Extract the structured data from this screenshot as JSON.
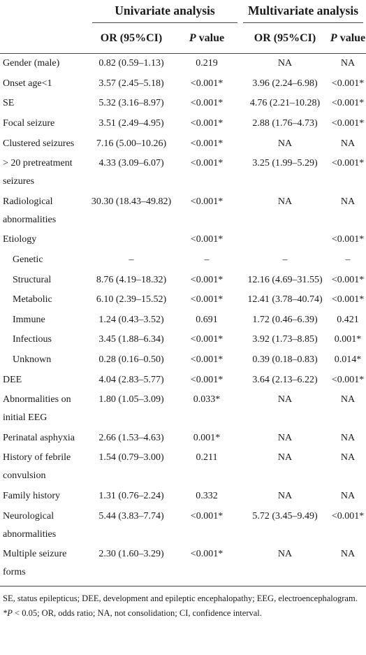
{
  "table": {
    "group_headers": [
      "Univariate analysis",
      "Multivariate analysis"
    ],
    "column_headers": [
      {
        "text": "OR (95%CI)"
      },
      {
        "italic": "P",
        "text": " value"
      },
      {
        "text": "OR (95%CI)"
      },
      {
        "italic": "P",
        "text": " value"
      }
    ],
    "rows": [
      {
        "label": "Gender (male)",
        "cells": [
          "0.82 (0.59–1.13)",
          "0.219",
          "NA",
          "NA"
        ]
      },
      {
        "label": "Onset age<1",
        "cells": [
          "3.57 (2.45–5.18)",
          "<0.001*",
          "3.96 (2.24–6.98)",
          "<0.001*"
        ]
      },
      {
        "label": "SE",
        "cells": [
          "5.32 (3.16–8.97)",
          "<0.001*",
          "4.76 (2.21–10.28)",
          "<0.001*"
        ]
      },
      {
        "label": "Focal seizure",
        "cells": [
          "3.51 (2.49–4.95)",
          "<0.001*",
          "2.88 (1.76–4.73)",
          "<0.001*"
        ]
      },
      {
        "label": "Clustered seizures",
        "cells": [
          "7.16 (5.00–10.26)",
          "<0.001*",
          "NA",
          "NA"
        ]
      },
      {
        "label": "> 20 pretreatment seizures",
        "cells": [
          "4.33 (3.09–6.07)",
          "<0.001*",
          "3.25 (1.99–5.29)",
          "<0.001*"
        ]
      },
      {
        "label": "Radiological abnormalities",
        "cells": [
          "30.30 (18.43–49.82)",
          "<0.001*",
          "NA",
          "NA"
        ]
      },
      {
        "label": "Etiology",
        "cells": [
          null,
          "<0.001*",
          null,
          "<0.001*"
        ]
      },
      {
        "label": "Genetic",
        "indent": true,
        "cells": [
          "–",
          "–",
          "–",
          "–"
        ]
      },
      {
        "label": "Structural",
        "indent": true,
        "cells": [
          "8.76 (4.19–18.32)",
          "<0.001*",
          "12.16 (4.69–31.55)",
          "<0.001*"
        ]
      },
      {
        "label": "Metabolic",
        "indent": true,
        "cells": [
          "6.10 (2.39–15.52)",
          "<0.001*",
          "12.41 (3.78–40.74)",
          "<0.001*"
        ]
      },
      {
        "label": "Immune",
        "indent": true,
        "cells": [
          "1.24 (0.43–3.52)",
          "0.691",
          "1.72 (0.46–6.39)",
          "0.421"
        ]
      },
      {
        "label": "Infectious",
        "indent": true,
        "cells": [
          "3.45 (1.88–6.34)",
          "<0.001*",
          "3.92 (1.73–8.85)",
          "0.001*"
        ]
      },
      {
        "label": "Unknown",
        "indent": true,
        "cells": [
          "0.28 (0.16–0.50)",
          "<0.001*",
          "0.39 (0.18–0.83)",
          "0.014*"
        ]
      },
      {
        "label": "DEE",
        "cells": [
          "4.04 (2.83–5.77)",
          "<0.001*",
          "3.64 (2.13–6.22)",
          "<0.001*"
        ]
      },
      {
        "label": "Abnormalities on initial EEG",
        "cells": [
          "1.80 (1.05–3.09)",
          "0.033*",
          "NA",
          "NA"
        ]
      },
      {
        "label": "Perinatal asphyxia",
        "cells": [
          "2.66 (1.53–4.63)",
          "0.001*",
          "NA",
          "NA"
        ]
      },
      {
        "label": "History of febrile convulsion",
        "cells": [
          "1.54 (0.79–3.00)",
          "0.211",
          "NA",
          "NA"
        ]
      },
      {
        "label": "Family history",
        "cells": [
          "1.31 (0.76–2.24)",
          "0.332",
          "NA",
          "NA"
        ]
      },
      {
        "label": "Neurological abnormalities",
        "cells": [
          "5.44 (3.83–7.74)",
          "<0.001*",
          "5.72 (3.45–9.49)",
          "<0.001*"
        ]
      },
      {
        "label": "Multiple seizure forms",
        "cells": [
          "2.30 (1.60–3.29)",
          "<0.001*",
          "NA",
          "NA"
        ]
      }
    ]
  },
  "footnotes": [
    {
      "text": "SE, status epilepticus; DEE, development and epileptic encephalopathy; EEG, electroencephalogram."
    },
    {
      "italic": "*P",
      "text": " < 0.05; OR, odds ratio; NA, not consolidation; CI, confidence interval."
    }
  ]
}
